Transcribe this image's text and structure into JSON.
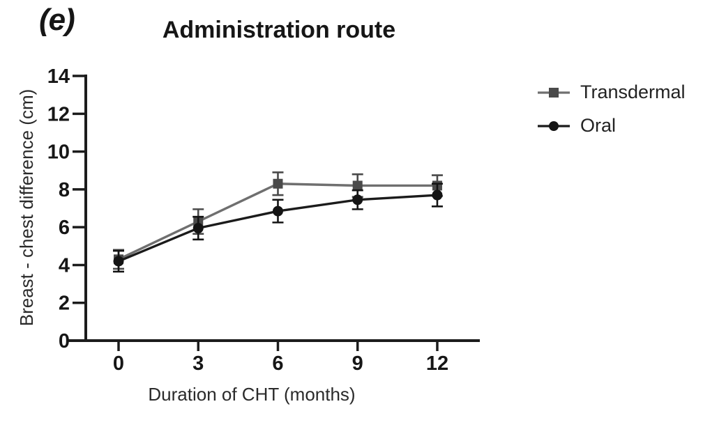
{
  "panel_label": "(e)",
  "colors": {
    "axis": "#1c1c1c",
    "tick_text": "#161616",
    "transdermal_line": "#6f6f6f",
    "transdermal_marker": "#4a4a4a",
    "oral_line": "#1b1b1b",
    "oral_marker": "#141414",
    "background": "#ffffff"
  },
  "chart_data": {
    "type": "line",
    "title": "Administration route",
    "xlabel": "Duration of CHT (months)",
    "ylabel": "Breast - chest difference (cm)",
    "x": [
      0,
      3,
      6,
      9,
      12
    ],
    "xticks": [
      0,
      3,
      6,
      9,
      12
    ],
    "yticks": [
      0,
      2,
      4,
      6,
      8,
      10,
      12,
      14
    ],
    "xlim": [
      0,
      12
    ],
    "ylim": [
      0,
      14
    ],
    "grid": false,
    "legend_position": "right",
    "error_bars": true,
    "series": [
      {
        "name": "Transdermal",
        "marker": "square",
        "color": "#6f6f6f",
        "marker_color": "#4a4a4a",
        "values": [
          4.3,
          6.3,
          8.3,
          8.2,
          8.2
        ],
        "errors": [
          0.5,
          0.65,
          0.6,
          0.6,
          0.55
        ]
      },
      {
        "name": "Oral",
        "marker": "circle",
        "color": "#1b1b1b",
        "marker_color": "#141414",
        "values": [
          4.2,
          5.95,
          6.85,
          7.45,
          7.7
        ],
        "errors": [
          0.55,
          0.6,
          0.6,
          0.5,
          0.6
        ]
      }
    ]
  }
}
